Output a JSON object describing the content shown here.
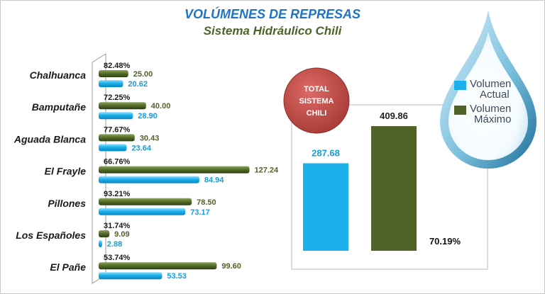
{
  "title": "VOLÚMENES DE REPRESAS",
  "subtitle": "Sistema Hidráulico Chili",
  "colors": {
    "actual": "#1bb0ea",
    "maximo": "#4f6228",
    "title_blue": "#1d74c6",
    "total_circle": "#c0504d"
  },
  "chart_data": [
    {
      "type": "bar",
      "orientation": "horizontal",
      "categories": [
        "Chalhuanca",
        "Bamputañe",
        "Aguada Blanca",
        "El Frayle",
        "Pillones",
        "Los Españoles",
        "El Pañe"
      ],
      "percent_labels": [
        "82.48%",
        "72.25%",
        "77.67%",
        "66.76%",
        "93.21%",
        "31.74%",
        "53.74%"
      ],
      "series": [
        {
          "name": "Volumen Máximo",
          "values": [
            25.0,
            40.0,
            30.43,
            127.24,
            78.5,
            9.09,
            99.6
          ],
          "labels": [
            "25.00",
            "40.00",
            "30.43",
            "127.24",
            "78.50",
            "9.09",
            "99.60"
          ]
        },
        {
          "name": "Volumen Actual",
          "values": [
            20.62,
            28.9,
            23.64,
            84.94,
            73.17,
            2.88,
            53.53
          ],
          "labels": [
            "20.62",
            "28.90",
            "23.64",
            "84.94",
            "73.17",
            "2.88",
            "53.53"
          ]
        }
      ],
      "grid": false
    },
    {
      "type": "bar",
      "orientation": "vertical",
      "title": "TOTAL SISTEMA CHILI",
      "categories": [
        "Volumen Actual",
        "Volumen Máximo"
      ],
      "values": [
        287.68,
        409.86
      ],
      "labels": [
        "287.68",
        "409.86"
      ],
      "percent_label": "70.19%",
      "legend": {
        "position": "top-right",
        "items": [
          "Volumen Actual",
          "Volumen Máximo"
        ]
      }
    }
  ]
}
